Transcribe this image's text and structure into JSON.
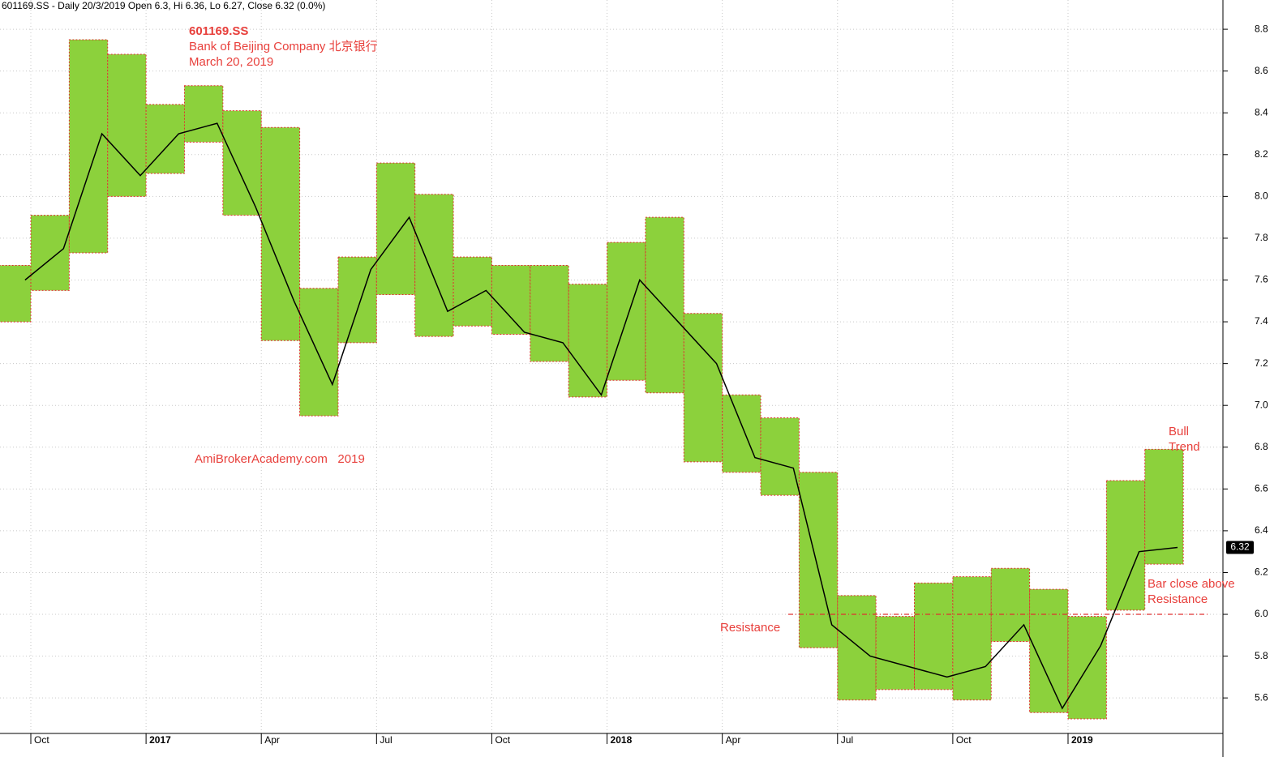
{
  "chart_data": {
    "type": "range-box",
    "title": "601169.SS - Daily 20/3/2019 Open 6.3, Hi 6.36, Lo 6.27, Close 6.32 (0.0%)",
    "annotations": [
      "601169.SS",
      "Bank of Beijing Company 北京银行",
      "March 20, 2019",
      "AmiBrokerAcademy.com   2019",
      "Bull",
      "Trend",
      "Bar close above",
      "Resistance",
      "Resistance"
    ],
    "categories": [
      null,
      "Oct",
      null,
      null,
      "2017",
      null,
      null,
      "Apr",
      null,
      null,
      "Jul",
      null,
      null,
      "Oct",
      null,
      null,
      "2018",
      null,
      null,
      "Apr",
      null,
      null,
      "Jul",
      null,
      null,
      "Oct",
      null,
      null,
      "2019",
      null,
      null
    ],
    "high": [
      7.67,
      7.91,
      8.75,
      8.68,
      8.44,
      8.53,
      8.41,
      8.33,
      7.56,
      7.71,
      8.16,
      8.01,
      7.71,
      7.67,
      7.67,
      7.58,
      7.78,
      7.9,
      7.44,
      7.05,
      6.94,
      6.68,
      6.09,
      5.99,
      6.15,
      6.18,
      6.22,
      6.12,
      5.99,
      6.64,
      6.79
    ],
    "low": [
      7.4,
      7.55,
      7.73,
      8.0,
      8.11,
      8.26,
      7.91,
      7.31,
      6.95,
      7.3,
      7.53,
      7.33,
      7.38,
      7.34,
      7.21,
      7.04,
      7.12,
      7.06,
      6.73,
      6.68,
      6.57,
      5.84,
      5.59,
      5.64,
      5.64,
      5.59,
      5.87,
      5.53,
      5.5,
      6.02,
      6.24
    ],
    "close": [
      7.6,
      7.75,
      8.3,
      8.1,
      8.3,
      8.35,
      7.95,
      7.5,
      7.1,
      7.65,
      7.9,
      7.45,
      7.55,
      7.35,
      7.3,
      7.05,
      7.6,
      7.4,
      7.2,
      6.75,
      6.7,
      5.95,
      5.8,
      5.75,
      5.7,
      5.75,
      5.95,
      5.55,
      5.85,
      6.3,
      6.32
    ],
    "box_color": "#8cd13c",
    "box_border": "#e03030",
    "line_color": "#000000",
    "resistance": 6.0,
    "last_value": 6.32,
    "ylim": [
      5.43,
      8.94
    ],
    "yticks": [
      5.6,
      5.8,
      {
        "value": 6,
        "label": "6.0"
      },
      6.2,
      6.4,
      6.6,
      6.8,
      {
        "value": 7,
        "label": "7.0"
      },
      7.2,
      7.4,
      7.6,
      7.8,
      {
        "value": 8,
        "label": "8.0"
      },
      8.2,
      8.4,
      8.6,
      8.8
    ],
    "grid": true
  }
}
